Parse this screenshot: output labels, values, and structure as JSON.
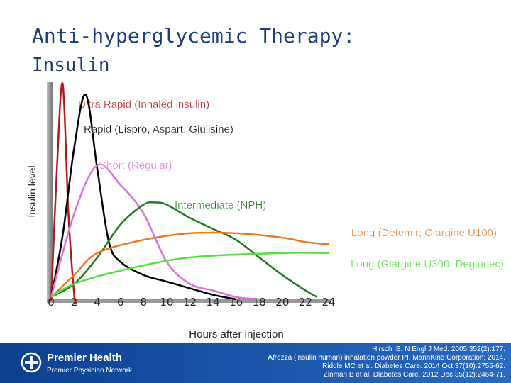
{
  "title": "Anti-hyperglycemic Therapy:",
  "subtitle": "Insulin",
  "chart_data": {
    "type": "line",
    "y_label": "Insulin level",
    "x_label": "Hours after injection",
    "xlim": [
      0,
      24
    ],
    "ylim": [
      0,
      100
    ],
    "xticks": [
      0,
      2,
      4,
      6,
      8,
      10,
      12,
      14,
      16,
      18,
      20,
      22,
      24
    ],
    "series": [
      {
        "name": "Ultra Rapid (Inhaled insulin)",
        "color": "#b01c1c",
        "x": [
          0,
          0.5,
          1,
          1.5,
          2,
          2.2
        ],
        "values": [
          0,
          60,
          99,
          40,
          3,
          0
        ]
      },
      {
        "name": "Rapid (Lispro, Aspart, Glulisine)",
        "color": "#000000",
        "x": [
          0,
          1,
          2,
          3,
          4,
          5,
          6,
          8,
          10,
          12,
          14,
          16
        ],
        "values": [
          2,
          30,
          70,
          94,
          60,
          27,
          18,
          12,
          9,
          6,
          3,
          1
        ]
      },
      {
        "name": "Short (Regular)",
        "color": "#e06fd6",
        "x": [
          0,
          2,
          4,
          6,
          8,
          10,
          12,
          14,
          16,
          18
        ],
        "values": [
          2,
          40,
          62,
          53,
          40,
          18,
          8,
          5,
          2,
          1
        ]
      },
      {
        "name": "Intermediate (NPH)",
        "color": "#1f7a22",
        "x": [
          0,
          2,
          4,
          6,
          8,
          9,
          10,
          12,
          14,
          16,
          18,
          20,
          22,
          23
        ],
        "values": [
          2,
          8,
          20,
          35,
          44,
          45,
          44,
          38,
          33,
          28,
          20,
          12,
          5,
          2
        ]
      },
      {
        "name": "Long (Detemir; Glargine U100)",
        "color": "#ec7a22",
        "x": [
          0,
          2,
          4,
          8,
          12,
          16,
          20,
          22,
          24
        ],
        "values": [
          2,
          12,
          22,
          28,
          31,
          31,
          29,
          27,
          26
        ]
      },
      {
        "name": "Long (Glargine U300; Degludec)",
        "color": "#55e040",
        "x": [
          0,
          2,
          6,
          12,
          20,
          24
        ],
        "values": [
          2,
          8,
          14,
          20,
          22,
          22
        ]
      }
    ]
  },
  "footer": {
    "logo_name": "Premier Health",
    "logo_sub": "Premier Physician Network",
    "citations": [
      "Hirsch IB. N Engl J Med. 2005;352(2):177.",
      "Afrezza (insulin human) inhalation powder PI. MannKind Corporation; 2014.",
      "Riddle MC et al. Diabetes Care. 2014 Oct;37(10):2755-62.",
      "Zinman B et al. Diabetes Care. 2012 Dec;35(12):2464-71."
    ]
  }
}
